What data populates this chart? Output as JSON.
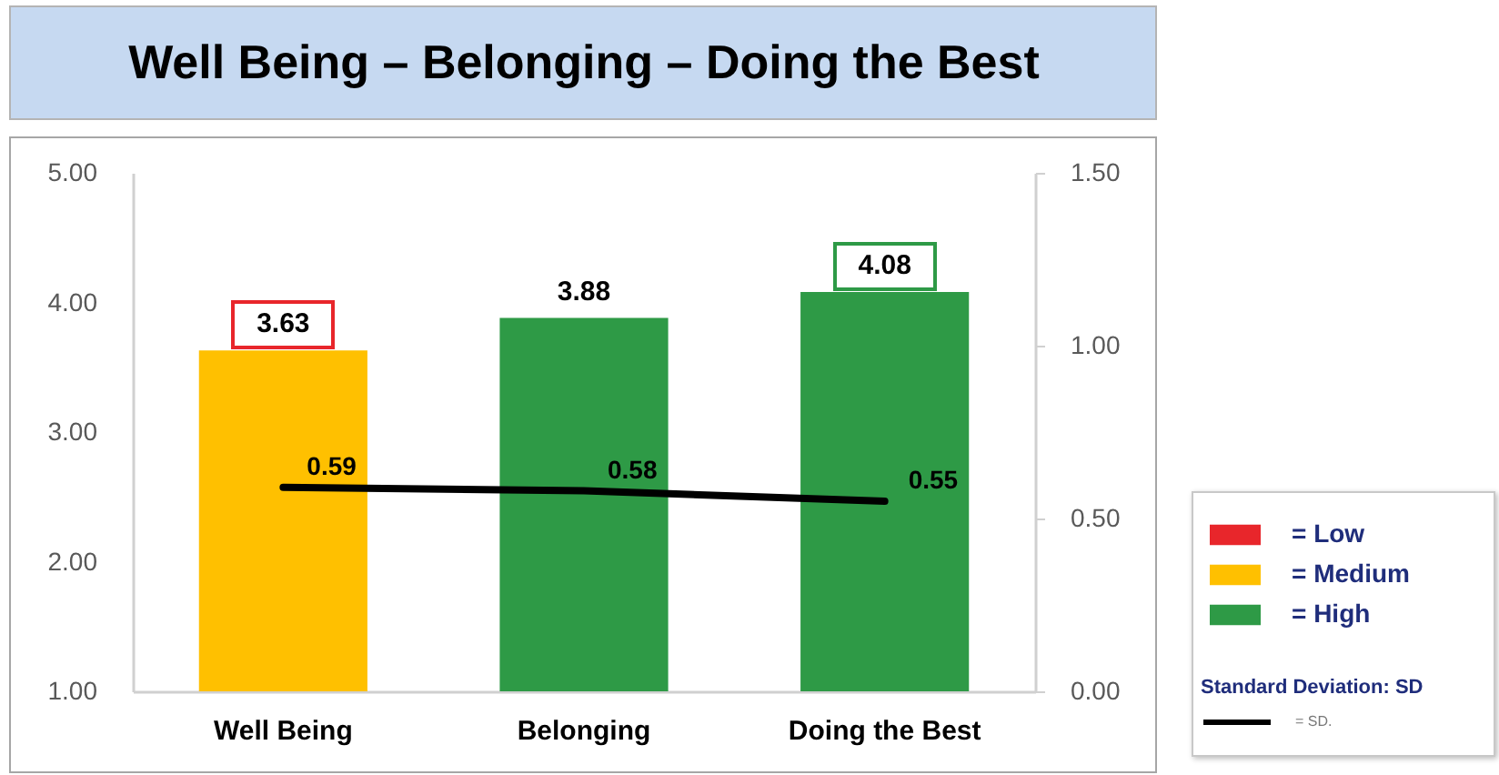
{
  "chart_data": {
    "type": "bar",
    "title": "Well Being – Belonging – Doing the Best",
    "categories": [
      "Well Being",
      "Belonging",
      "Doing the Best"
    ],
    "stacked": true,
    "series": [
      {
        "name": "= Low",
        "color": "#e8262b",
        "values": [
          null,
          null,
          null
        ]
      },
      {
        "name": "= Medium",
        "color": "#ffc000",
        "values": [
          3.63,
          null,
          null
        ]
      },
      {
        "name": "= High",
        "color": "#2e9a46",
        "values": [
          null,
          3.88,
          4.08
        ]
      },
      {
        "name": "= SD.",
        "type": "line",
        "axis": "y2",
        "color": "#000000",
        "values": [
          0.59,
          0.58,
          0.55
        ]
      }
    ],
    "ylim": [
      1,
      5
    ],
    "yticks": [
      {
        "value": 1,
        "label": "1.00"
      },
      {
        "value": 2,
        "label": "2.00"
      },
      {
        "value": 3,
        "label": "3.00"
      },
      {
        "value": 4,
        "label": "4.00"
      },
      {
        "value": 5,
        "label": "5.00"
      }
    ],
    "y2lim": [
      0,
      1.5
    ],
    "y2ticks": [
      {
        "value": 0,
        "label": "0.00"
      },
      {
        "value": 0.5,
        "label": "0.50"
      },
      {
        "value": 1,
        "label": "1.00"
      },
      {
        "value": 1.5,
        "label": "1.50"
      }
    ],
    "legend": "right",
    "legend_title": "Standard Deviation: SD",
    "data_labels": true
  }
}
